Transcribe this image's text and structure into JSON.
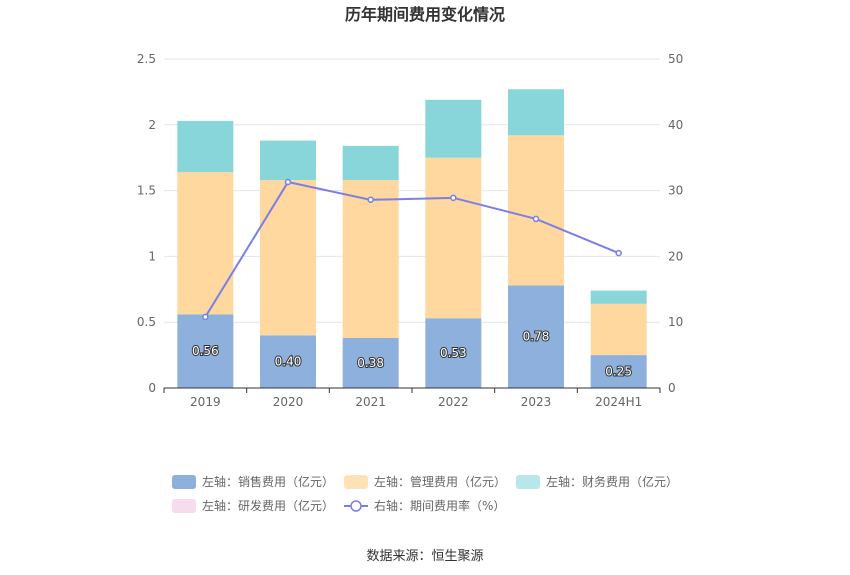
{
  "chart_data": {
    "type": "bar",
    "title": "历年期间费用变化情况",
    "categories": [
      "2019",
      "2020",
      "2021",
      "2022",
      "2023",
      "2024H1"
    ],
    "left_axis": {
      "min": 0,
      "max": 2.5,
      "ticks": [
        "0",
        "0.5",
        "1",
        "1.5",
        "2",
        "2.5"
      ]
    },
    "right_axis": {
      "min": 0,
      "max": 50,
      "ticks": [
        "0",
        "10",
        "20",
        "30",
        "40",
        "50"
      ]
    },
    "series": [
      {
        "name": "左轴：销售费用（亿元）",
        "axis": "left",
        "type": "bar",
        "color": "#8eb0dc",
        "values": [
          0.56,
          0.4,
          0.38,
          0.53,
          0.78,
          0.25
        ],
        "labels": [
          "0.56",
          "0.40",
          "0.38",
          "0.53",
          "0.78",
          "0.25"
        ]
      },
      {
        "name": "左轴：管理费用（亿元）",
        "axis": "left",
        "type": "bar",
        "color": "#fed89e",
        "values": [
          1.08,
          1.18,
          1.2,
          1.22,
          1.14,
          0.39
        ]
      },
      {
        "name": "左轴：财务费用（亿元）",
        "axis": "left",
        "type": "bar",
        "color": "#88d5da",
        "values": [
          0.39,
          0.3,
          0.26,
          0.44,
          0.35,
          0.1
        ]
      },
      {
        "name": "左轴：研发费用（亿元）",
        "axis": "left",
        "type": "bar",
        "color": "#f6dced",
        "values": [
          0,
          0,
          0,
          0,
          0,
          0
        ]
      },
      {
        "name": "右轴：期间费用率（%）",
        "axis": "right",
        "type": "line",
        "color": "#7b7fe6",
        "values": [
          10.8,
          31.3,
          28.6,
          28.9,
          25.7,
          20.5
        ]
      }
    ],
    "legend_position": "bottom",
    "grid": true
  },
  "source": "数据来源：恒生聚源"
}
